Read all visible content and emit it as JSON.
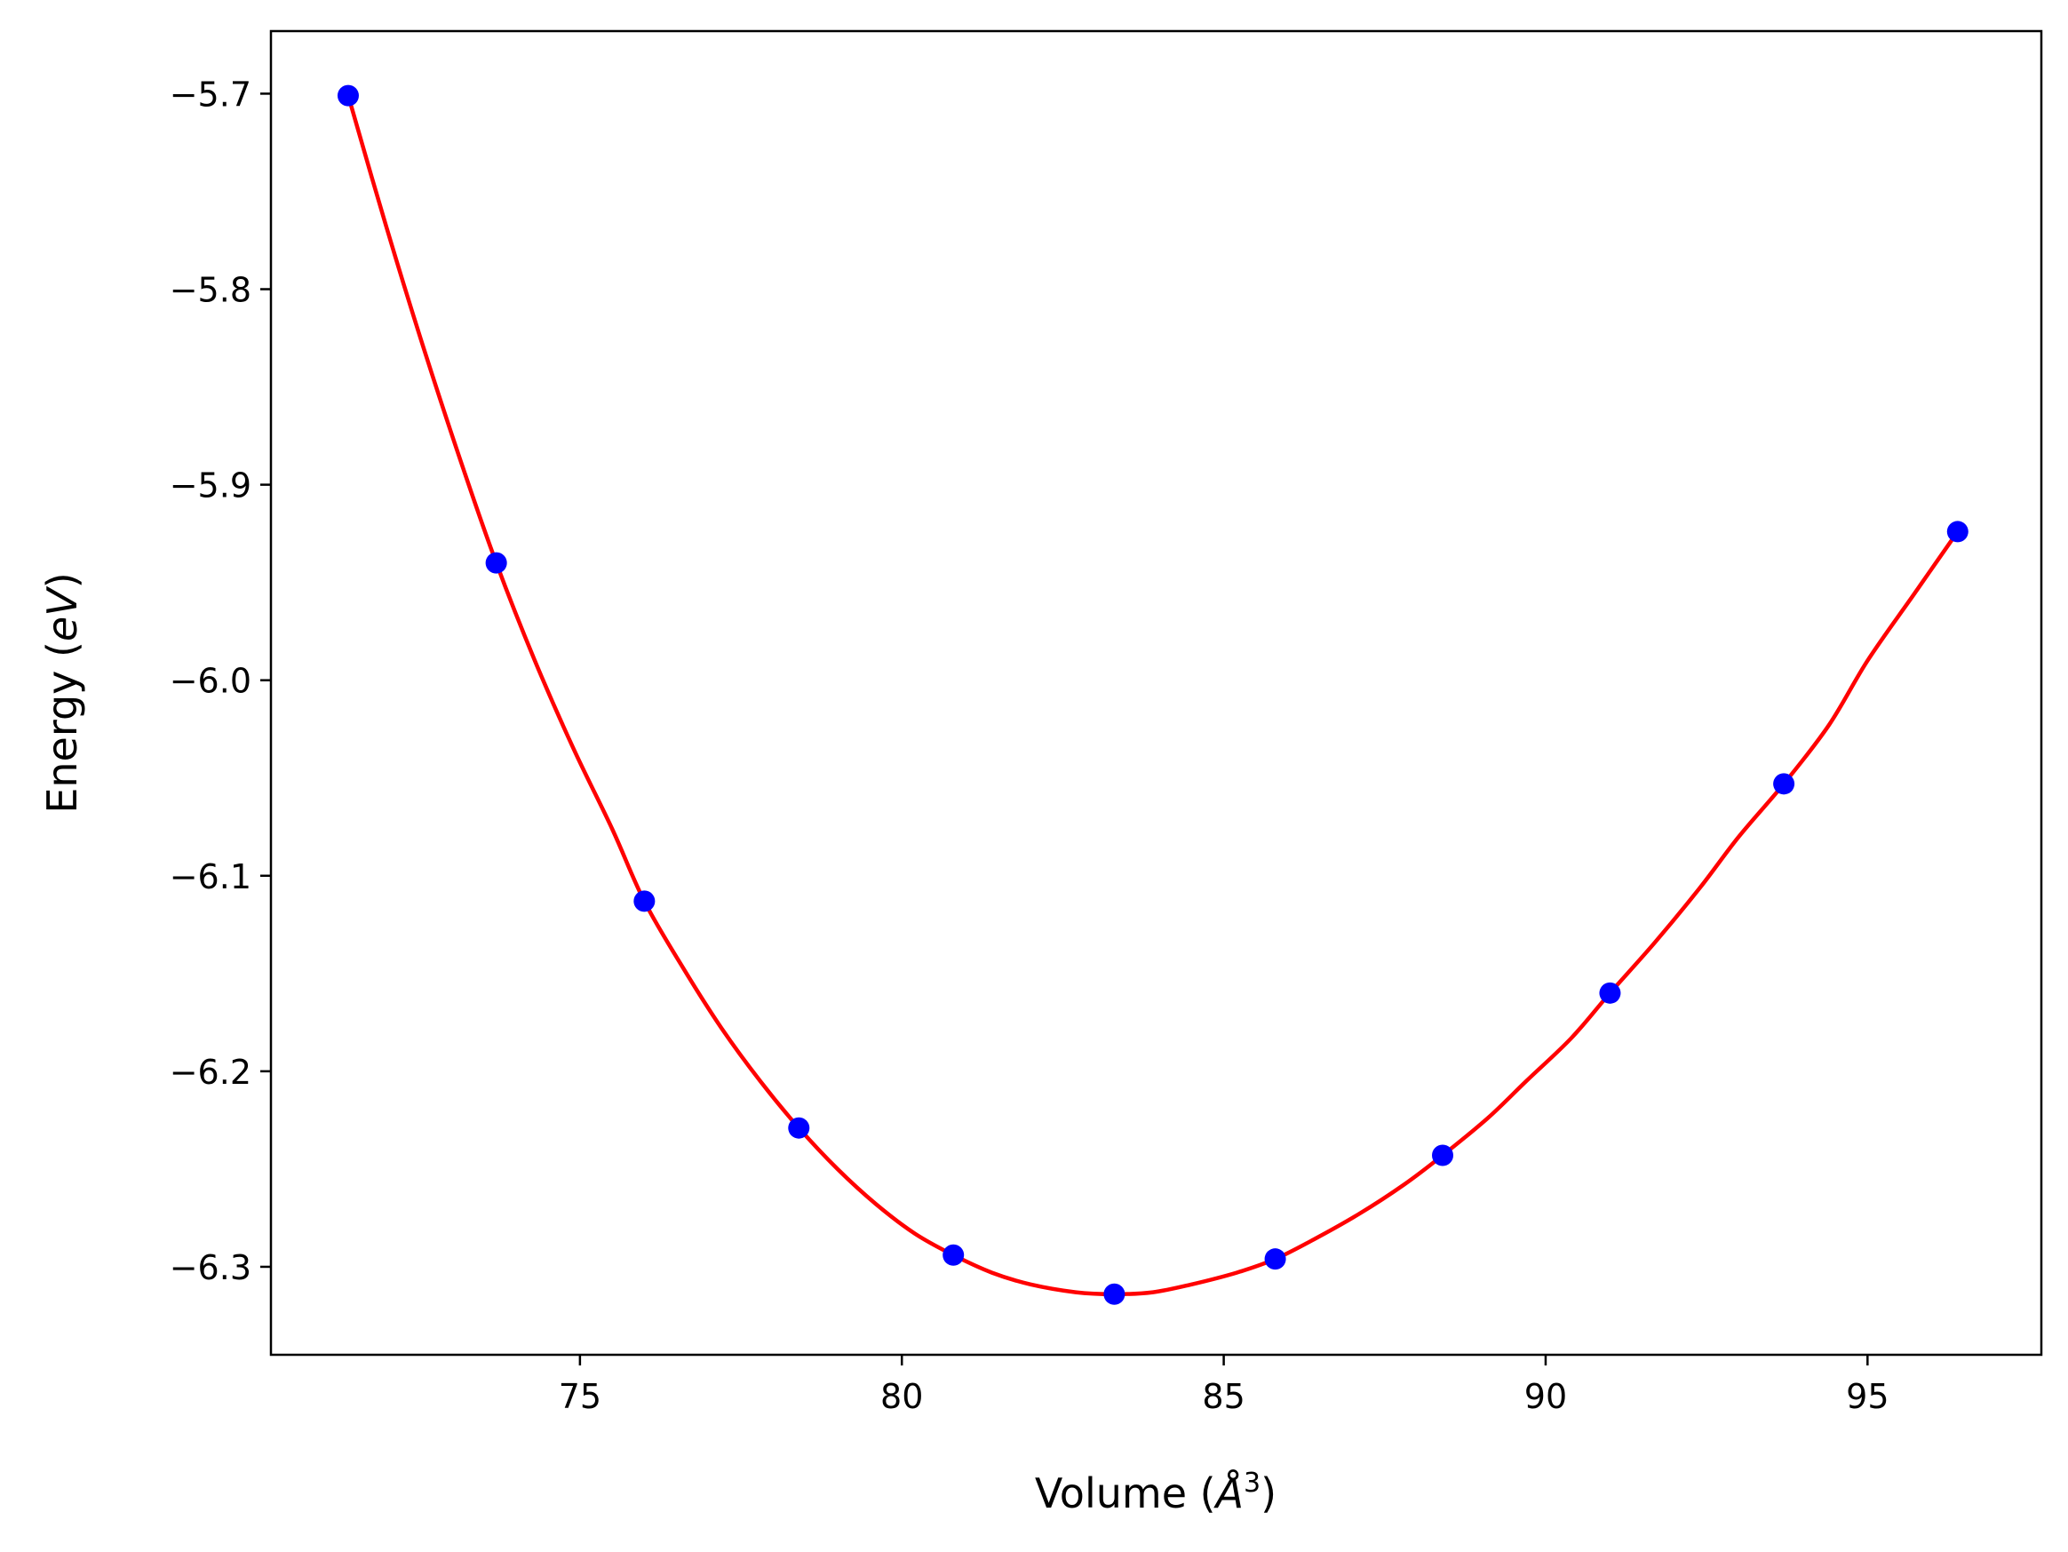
{
  "chart_data": {
    "type": "line",
    "title": "",
    "xlabel": {
      "prefix": "Volume (",
      "symbol": "Å",
      "superscript": "3",
      "suffix": ")"
    },
    "ylabel": {
      "prefix": "Energy (",
      "unit": "eV",
      "suffix": ")"
    },
    "xlim": [
      70.2,
      97.7
    ],
    "ylim": [
      -6.345,
      -5.668
    ],
    "xticks": [
      75,
      80,
      85,
      90,
      95
    ],
    "xtick_labels": [
      "75",
      "80",
      "85",
      "90",
      "95"
    ],
    "yticks": [
      -5.7,
      -5.8,
      -5.9,
      -6.0,
      -6.1,
      -6.2,
      -6.3
    ],
    "ytick_labels": [
      "−5.7",
      "−5.8",
      "−5.9",
      "−6.0",
      "−6.1",
      "−6.2",
      "−6.3"
    ],
    "grid": false,
    "legend": "none",
    "series": [
      {
        "kind": "scatter",
        "color": "#0000ff",
        "x": [
          71.4,
          73.7,
          76.0,
          78.4,
          80.8,
          83.3,
          85.8,
          88.4,
          91.0,
          93.7,
          96.4
        ],
        "y": [
          -5.701,
          -5.94,
          -6.113,
          -6.229,
          -6.294,
          -6.314,
          -6.296,
          -6.243,
          -6.16,
          -6.053,
          -5.924
        ]
      },
      {
        "kind": "fit-curve",
        "color": "#ff0000",
        "x": [
          71.4,
          72.0,
          72.6,
          73.2,
          73.7,
          74.3,
          74.9,
          75.5,
          76.0,
          76.6,
          77.2,
          77.8,
          78.4,
          79.0,
          79.6,
          80.2,
          80.8,
          81.4,
          82.0,
          82.7,
          83.3,
          83.9,
          84.5,
          85.2,
          85.8,
          86.4,
          87.1,
          87.8,
          88.4,
          89.1,
          89.7,
          90.4,
          91.0,
          91.7,
          92.4,
          93.0,
          93.7,
          94.4,
          95.0,
          95.7,
          96.4
        ],
        "y": [
          -5.701,
          -5.769,
          -5.833,
          -5.893,
          -5.94,
          -5.99,
          -6.035,
          -6.076,
          -6.113,
          -6.147,
          -6.178,
          -6.205,
          -6.229,
          -6.25,
          -6.268,
          -6.283,
          -6.294,
          -6.303,
          -6.309,
          -6.313,
          -6.314,
          -6.313,
          -6.309,
          -6.303,
          -6.296,
          -6.286,
          -6.273,
          -6.258,
          -6.243,
          -6.224,
          -6.205,
          -6.183,
          -6.16,
          -6.134,
          -6.106,
          -6.08,
          -6.053,
          -6.023,
          -5.99,
          -5.957,
          -5.924
        ]
      }
    ]
  }
}
